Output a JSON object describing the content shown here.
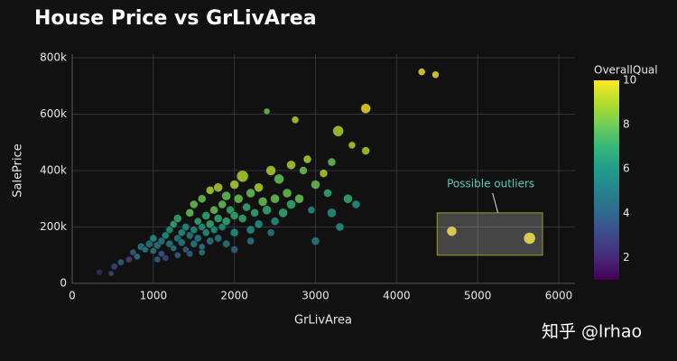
{
  "chart_data": {
    "type": "scatter",
    "title": "House Price vs GrLivArea",
    "x_label": "GrLivArea",
    "y_label": "SalePrice",
    "colorbar_title": "OverallQual",
    "colorscale": [
      "#440154",
      "#482878",
      "#3e4989",
      "#31688e",
      "#26828e",
      "#1f9e89",
      "#35b779",
      "#6ece58",
      "#b5de2b",
      "#fde725"
    ],
    "clim": [
      1,
      10
    ],
    "cticks": [
      2,
      4,
      6,
      8,
      10
    ],
    "xlim": [
      0,
      6200
    ],
    "xticks": [
      0,
      1000,
      2000,
      3000,
      4000,
      5000,
      6000
    ],
    "ylim": [
      0,
      800000
    ],
    "yticks": [
      {
        "value": 0,
        "label": "0"
      },
      {
        "value": 200000,
        "label": "200k"
      },
      {
        "value": 400000,
        "label": "400k"
      },
      {
        "value": 600000,
        "label": "600k"
      },
      {
        "value": 800000,
        "label": "800k"
      }
    ],
    "grid": true,
    "x": [
      334,
      480,
      520,
      600,
      700,
      750,
      800,
      850,
      900,
      950,
      1000,
      1000,
      1050,
      1100,
      1100,
      1150,
      1200,
      1200,
      1250,
      1250,
      1300,
      1300,
      1350,
      1350,
      1400,
      1400,
      1450,
      1450,
      1500,
      1500,
      1500,
      1550,
      1550,
      1600,
      1600,
      1600,
      1650,
      1650,
      1700,
      1700,
      1700,
      1750,
      1750,
      1800,
      1800,
      1800,
      1850,
      1850,
      1900,
      1900,
      1900,
      1950,
      2000,
      2000,
      2000,
      2050,
      2100,
      2100,
      2150,
      2200,
      2200,
      2250,
      2300,
      2300,
      2350,
      2400,
      2400,
      2450,
      2500,
      2500,
      2550,
      2600,
      2650,
      2700,
      2700,
      2750,
      2800,
      2850,
      2900,
      2950,
      3000,
      3100,
      3150,
      3200,
      3280,
      3300,
      3400,
      3450,
      3500,
      3620,
      3620,
      4310,
      4480,
      4680,
      5640,
      1050,
      1150,
      1300,
      1450,
      1600,
      2000,
      2200,
      2450,
      3000,
      3200
    ],
    "values": [
      40000,
      35000,
      60000,
      75000,
      85000,
      110000,
      95000,
      130000,
      120000,
      140000,
      115000,
      160000,
      135000,
      150000,
      105000,
      170000,
      140000,
      190000,
      125000,
      210000,
      160000,
      230000,
      145000,
      180000,
      200000,
      120000,
      250000,
      170000,
      190000,
      140000,
      280000,
      220000,
      160000,
      300000,
      200000,
      130000,
      240000,
      180000,
      330000,
      210000,
      150000,
      260000,
      190000,
      340000,
      230000,
      160000,
      280000,
      200000,
      310000,
      220000,
      140000,
      260000,
      350000,
      240000,
      180000,
      300000,
      380000,
      230000,
      270000,
      320000,
      190000,
      250000,
      340000,
      210000,
      290000,
      610000,
      260000,
      400000,
      300000,
      220000,
      370000,
      250000,
      320000,
      420000,
      280000,
      580000,
      300000,
      400000,
      440000,
      260000,
      350000,
      390000,
      320000,
      430000,
      540000,
      200000,
      300000,
      490000,
      280000,
      470000,
      620000,
      750000,
      740000,
      185000,
      160000,
      85000,
      90000,
      100000,
      105000,
      110000,
      120000,
      150000,
      180000,
      150000,
      250000
    ],
    "color_values": [
      2,
      3,
      3,
      4,
      3,
      4,
      5,
      5,
      5,
      5,
      5,
      6,
      5,
      5,
      4,
      6,
      5,
      6,
      5,
      7,
      5,
      7,
      5,
      6,
      6,
      4,
      8,
      5,
      6,
      5,
      8,
      7,
      5,
      8,
      6,
      5,
      7,
      6,
      9,
      7,
      5,
      8,
      6,
      9,
      7,
      5,
      8,
      6,
      8,
      7,
      5,
      7,
      9,
      7,
      6,
      8,
      9,
      7,
      7,
      8,
      6,
      7,
      9,
      6,
      8,
      8,
      7,
      9,
      8,
      6,
      8,
      7,
      8,
      9,
      7,
      9,
      8,
      8,
      9,
      6,
      8,
      9,
      7,
      8,
      9,
      6,
      7,
      9,
      6,
      9,
      10,
      10,
      10,
      10,
      10,
      4,
      3,
      4,
      4,
      5,
      4,
      5,
      5,
      5,
      6
    ],
    "sizes": [
      4,
      4,
      5,
      5,
      5,
      5,
      5,
      6,
      5,
      6,
      5,
      6,
      6,
      6,
      5,
      6,
      6,
      6,
      5,
      6,
      6,
      7,
      6,
      6,
      6,
      5,
      7,
      6,
      6,
      6,
      7,
      6,
      6,
      7,
      6,
      5,
      7,
      6,
      7,
      7,
      6,
      7,
      6,
      8,
      7,
      6,
      7,
      6,
      8,
      7,
      6,
      7,
      8,
      7,
      7,
      8,
      11,
      7,
      7,
      8,
      7,
      7,
      8,
      7,
      8,
      5,
      8,
      9,
      8,
      7,
      9,
      8,
      8,
      8,
      8,
      6,
      8,
      7,
      7,
      6,
      8,
      7,
      7,
      7,
      10,
      7,
      8,
      6,
      7,
      7,
      9,
      6,
      6,
      9,
      11,
      5,
      5,
      5,
      5,
      5,
      6,
      6,
      6,
      7,
      8
    ],
    "highlight": {
      "x": [
        4500,
        5800
      ],
      "y": [
        100000,
        250000
      ]
    },
    "annotation": {
      "text": "Possible outliers",
      "x": 5250,
      "y": 250000
    },
    "watermark": "知乎 @lrhao"
  }
}
